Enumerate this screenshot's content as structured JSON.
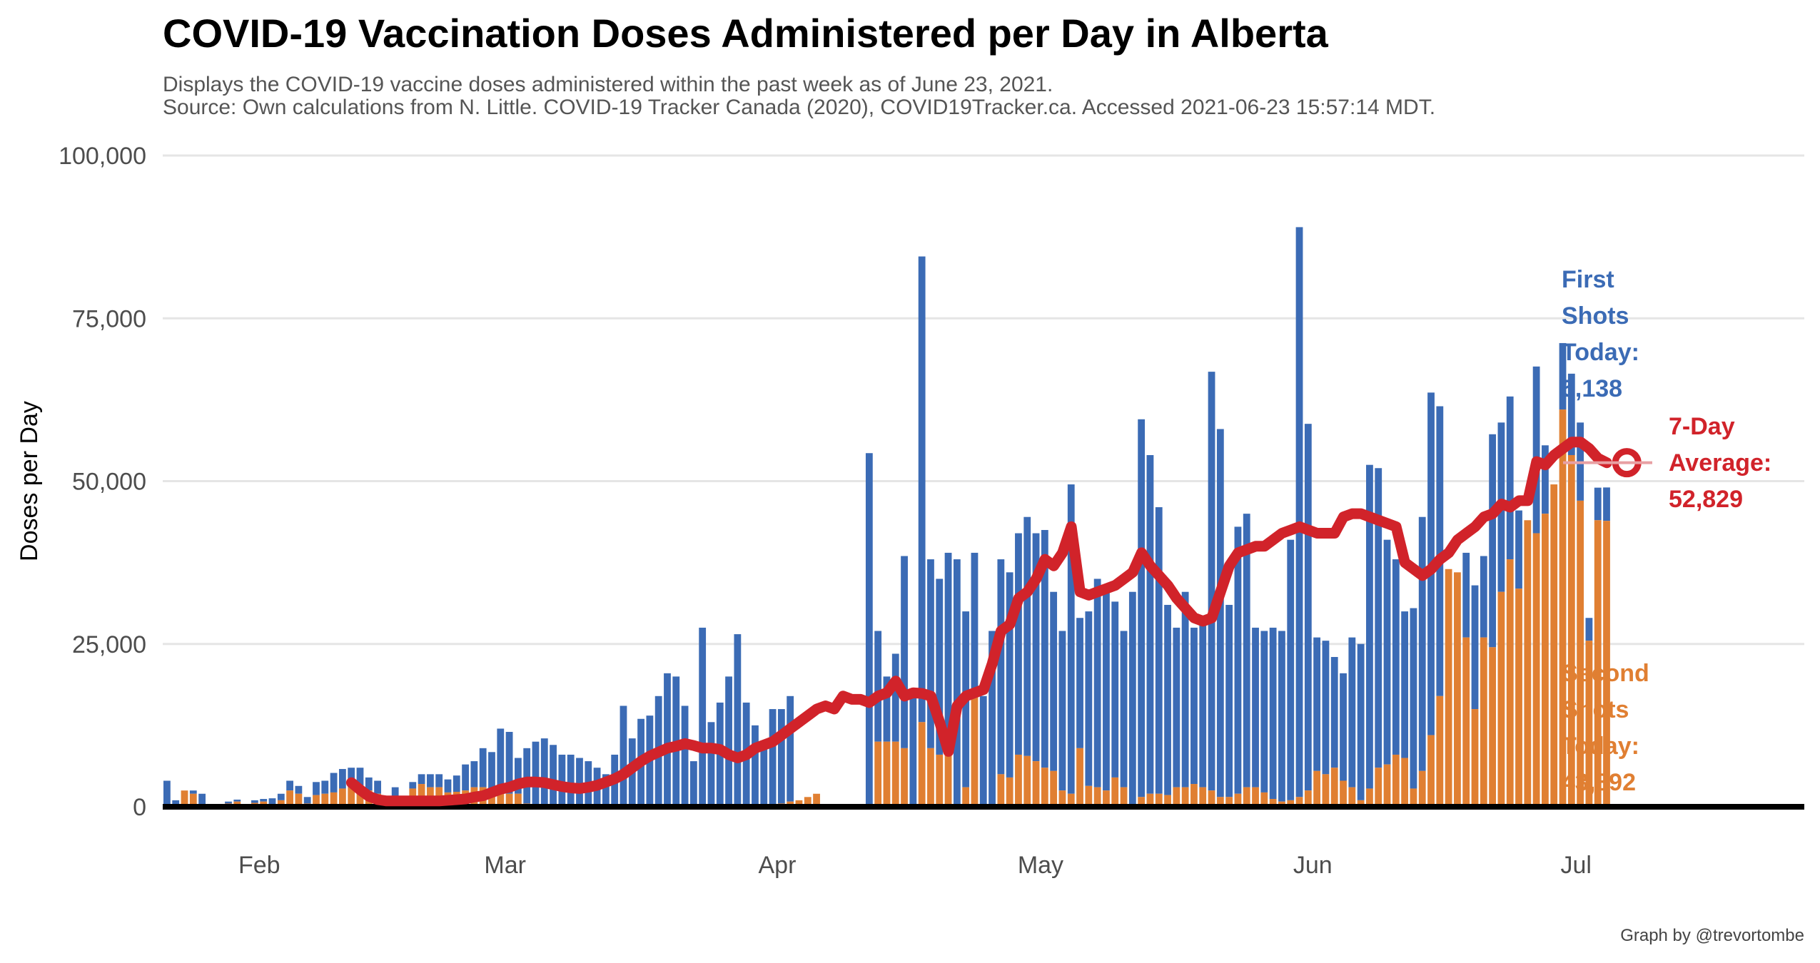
{
  "title": "COVID-19 Vaccination Doses Administered per Day in Alberta",
  "subtitle": "Displays the COVID-19 vaccine doses administered within the past week as of June 23, 2021.",
  "source": "Source: Own calculations from N. Little. COVID-19 Tracker Canada (2020), COVID19Tracker.ca. Accessed 2021-06-23 15:57:14 MDT.",
  "credit": "Graph by @trevortombe",
  "colors": {
    "first": "#3B6BB5",
    "second": "#E07F32",
    "avg": "#D1232A",
    "grid": "#E5E5E5",
    "axis": "#000000"
  },
  "annotations": {
    "first": [
      "First",
      "Shots",
      "Today:",
      "5,138"
    ],
    "second": [
      "Second",
      "Shots",
      "Today:",
      "43,892"
    ],
    "avg": [
      "7-Day",
      "Average:",
      "52,829"
    ]
  },
  "chart_data": {
    "type": "bar",
    "title": "COVID-19 Vaccination Doses Administered per Day in Alberta",
    "ylabel": "Doses per Day",
    "xlabel": "",
    "ylim": [
      0,
      100000
    ],
    "yticks": [
      0,
      25000,
      50000,
      75000,
      100000
    ],
    "ytick_labels": [
      "0",
      "25,000",
      "50,000",
      "75,000",
      "100,000"
    ],
    "x_start": "2021-01-21",
    "xlim": [
      "2021-01-21",
      "2021-07-27"
    ],
    "xticks": [
      "2021-02-01",
      "2021-03-01",
      "2021-04-01",
      "2021-05-01",
      "2021-06-01",
      "2021-07-01"
    ],
    "xtick_labels": [
      "Feb",
      "Mar",
      "Apr",
      "May",
      "Jun",
      "Jul"
    ],
    "stacked": true,
    "grid": true,
    "series": [
      {
        "name": "Second Shots",
        "values": [
          0,
          0,
          2500,
          2000,
          0,
          0,
          0,
          500,
          800,
          0,
          600,
          800,
          0,
          1000,
          2500,
          2000,
          500,
          1800,
          2000,
          2200,
          2800,
          3000,
          3000,
          2500,
          2000,
          500,
          1500,
          0,
          2800,
          3500,
          3000,
          3000,
          2200,
          2300,
          2500,
          3000,
          3000,
          2400,
          2000,
          2000,
          2000,
          500,
          0,
          0,
          0,
          0,
          0,
          0,
          0,
          0,
          0,
          0,
          0,
          0,
          0,
          0,
          0,
          0,
          0,
          0,
          0,
          0,
          0,
          0,
          0,
          0,
          0,
          0,
          0,
          0,
          500,
          800,
          1000,
          1500,
          2000,
          0,
          0,
          0,
          0,
          0,
          0,
          10000,
          10000,
          10000,
          9000,
          0,
          13000,
          9000,
          8000,
          8000,
          0,
          3000,
          17000,
          0,
          0,
          5000,
          4500,
          8000,
          7800,
          7000,
          6000,
          5500,
          2500,
          2000,
          9000,
          3200,
          3000,
          2500,
          4500,
          3000,
          0,
          1500,
          2000,
          2000,
          1800,
          3000,
          3000,
          3500,
          3000,
          2500,
          1500,
          1500,
          2000,
          3000,
          3000,
          2200,
          1200,
          800,
          1000,
          1500,
          2500,
          5500,
          5000,
          6000,
          4000,
          3000,
          1000,
          2800,
          6000,
          6500,
          8000,
          7500,
          2800,
          5500,
          11000,
          17000,
          36500,
          36000,
          26000,
          15000,
          26000,
          24500,
          33000,
          38000,
          33500,
          44000,
          42000,
          45000,
          49500,
          61000,
          54000,
          47000,
          25500,
          44000,
          43900
        ]
      },
      {
        "name": "First Shots",
        "values": [
          0,
          1000,
          600,
          0,
          0,
          100,
          200,
          300,
          300,
          200,
          400,
          400,
          1300,
          1000,
          1500,
          1200,
          1000,
          2000,
          2000,
          3200,
          3000,
          3000,
          3000,
          2000,
          2000,
          500,
          1500,
          0,
          1000,
          1500,
          2000,
          2000,
          2000,
          2500,
          4000,
          4000,
          6000,
          6000,
          9000,
          9000,
          2000,
          1500,
          1500,
          1500,
          0,
          0,
          0,
          0,
          0,
          0,
          0,
          0,
          0,
          0,
          0,
          0,
          0,
          0,
          0,
          0,
          0,
          0,
          0,
          0,
          0,
          0,
          0,
          0,
          0,
          0,
          0,
          0,
          0,
          0,
          0,
          0,
          0,
          0,
          0,
          0,
          0,
          0,
          0,
          0,
          0,
          0,
          0,
          0,
          0,
          0,
          0,
          0,
          0,
          0,
          0,
          0,
          0,
          0,
          0,
          0,
          0,
          0,
          0,
          0,
          0,
          0,
          0,
          0,
          0,
          0,
          0,
          0,
          0,
          0,
          0,
          0,
          0,
          0,
          0,
          0,
          0,
          0,
          0,
          0,
          0,
          0,
          0,
          0,
          0,
          0,
          0,
          0,
          0,
          0,
          0,
          0,
          0,
          0,
          0,
          0,
          0,
          0,
          0,
          0,
          0,
          0,
          0,
          0,
          0,
          0,
          0,
          0,
          0,
          0,
          0,
          0,
          0,
          0,
          0,
          0,
          0,
          0,
          0,
          0,
          0,
          0,
          0,
          0,
          0,
          0,
          0,
          0,
          0,
          5138
        ]
      }
    ],
    "totals": [
      4000,
      1000,
      600,
      2500,
      2000,
      100,
      200,
      800,
      1100,
      200,
      1000,
      1200,
      1300,
      2000,
      4000,
      3200,
      1500,
      3800,
      4000,
      5200,
      5800,
      6000,
      6000,
      4500,
      4000,
      1000,
      3000,
      0,
      3800,
      5000,
      5000,
      5000,
      4200,
      4800,
      6500,
      7000,
      9000,
      8400,
      12000,
      11500,
      7500,
      9000,
      10000,
      10500,
      9500,
      8000,
      8000,
      7500,
      7000,
      6000,
      5000,
      8000,
      15500,
      10500,
      13500,
      14000,
      17000,
      20500,
      20000,
      15500,
      7000,
      27500,
      13000,
      16000,
      20000,
      26500,
      16000,
      12500,
      10000,
      15000,
      15000,
      17000,
      0,
      0,
      0,
      0,
      0,
      0,
      0,
      0,
      54300,
      27000,
      20000,
      23500,
      38500,
      17000,
      84500,
      38000,
      35000,
      39000,
      38000,
      30000,
      39000,
      17000,
      27000,
      38000,
      36000,
      42000,
      44500,
      42000,
      42500,
      33000,
      27000,
      49500,
      29000,
      30000,
      35000,
      34000,
      31500,
      27000,
      33000,
      59500,
      54000,
      46000,
      31000,
      27500,
      33000,
      27500,
      28000,
      66800,
      58000,
      31000,
      43000,
      45000,
      27500,
      27000,
      27500,
      27000,
      41000,
      89000,
      58800,
      26000,
      25500,
      23000,
      20500,
      26000,
      25000,
      52500,
      52000,
      41000,
      38000,
      30000,
      30500,
      44500,
      63600,
      61500,
      36500,
      26000,
      39000,
      34000,
      38500,
      57200,
      59000,
      63000,
      45500,
      28500,
      67600,
      55500,
      47000,
      71200,
      66500,
      59000,
      29000,
      49000,
      49030
    ],
    "seven_day_average": [
      3700,
      2600,
      1600,
      1100,
      900,
      900,
      900,
      900,
      900,
      900,
      900,
      1000,
      1100,
      1200,
      1500,
      1700,
      2200,
      2700,
      3000,
      3500,
      3800,
      3800,
      3700,
      3400,
      3100,
      2900,
      2800,
      3000,
      3300,
      3800,
      4300,
      5000,
      6000,
      7000,
      7800,
      8400,
      9000,
      9300,
      9700,
      9400,
      9000,
      9000,
      8800,
      8000,
      7500,
      8000,
      9000,
      9500,
      10000,
      11000,
      12000,
      13000,
      14000,
      15000,
      15500,
      15000,
      17000,
      16500,
      16500,
      16000,
      17000,
      17500,
      19300,
      17000,
      17500,
      17400,
      17000,
      13000,
      8500,
      15500,
      17000,
      17500,
      18000,
      22000,
      27000,
      28000,
      32000,
      33000,
      35000,
      38000,
      37000,
      39000,
      43000,
      33000,
      32500,
      33000,
      33500,
      34000,
      35000,
      36000,
      39000,
      37000,
      35500,
      34000,
      32000,
      30500,
      29000,
      28500,
      29000,
      33000,
      37000,
      39000,
      39500,
      40000,
      40000,
      41000,
      42000,
      42500,
      43000,
      42500,
      42000,
      42000,
      42000,
      44500,
      45000,
      45000,
      44500,
      44000,
      43500,
      43000,
      37500,
      36500,
      35500,
      36500,
      38000,
      39000,
      41000,
      42000,
      43000,
      44500,
      45000,
      46500,
      46000,
      47000,
      47000,
      53000,
      52500,
      54000,
      55000,
      56000,
      56000,
      55000,
      53500,
      52829
    ],
    "latest": {
      "first_shots": 5138,
      "second_shots": 43892,
      "seven_day_average": 52829
    }
  }
}
